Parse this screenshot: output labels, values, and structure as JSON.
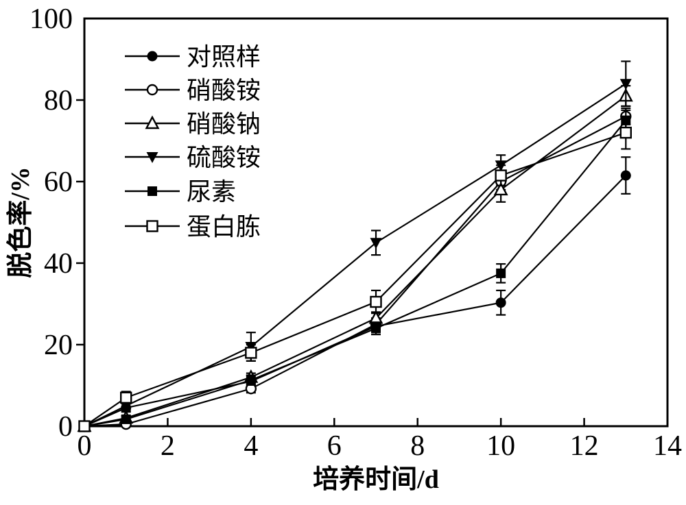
{
  "figure": {
    "background": "#ffffff",
    "ink_color": "#000000"
  },
  "chart_data": {
    "type": "line",
    "title": "",
    "xlabel": "培养时间/d",
    "ylabel": "脱色率/%",
    "xlim": [
      0,
      14
    ],
    "ylim": [
      0,
      100
    ],
    "x_ticks": [
      0,
      2,
      4,
      6,
      8,
      10,
      12,
      14
    ],
    "y_ticks": [
      0,
      20,
      40,
      60,
      80,
      100
    ],
    "grid": false,
    "legend_position": "upper-left-inside",
    "x": [
      0,
      1,
      4,
      7,
      10,
      13
    ],
    "series": [
      {
        "name": "对照样",
        "marker": "filled-circle",
        "values": [
          0,
          4.5,
          11,
          24.5,
          30.3,
          61.5
        ],
        "errors": [
          0,
          1,
          1.5,
          1.5,
          3,
          4.5
        ]
      },
      {
        "name": "硝酸铵",
        "marker": "open-circle",
        "values": [
          0,
          0.5,
          9.2,
          25,
          60,
          76
        ],
        "errors": [
          0,
          0.5,
          1,
          1.5,
          2,
          2
        ]
      },
      {
        "name": "硝酸钠",
        "marker": "open-triangle",
        "values": [
          0,
          2,
          12,
          26.5,
          58,
          81
        ],
        "errors": [
          0,
          0.5,
          1,
          1.5,
          3,
          2.5
        ]
      },
      {
        "name": "硫酸铵",
        "marker": "filled-triangle-down",
        "values": [
          0,
          5,
          19.5,
          45,
          64,
          84
        ],
        "errors": [
          0,
          1.2,
          3.5,
          3,
          2.5,
          5.5
        ]
      },
      {
        "name": "尿素",
        "marker": "filled-square",
        "values": [
          0,
          1.7,
          11.3,
          24,
          37.5,
          75
        ],
        "errors": [
          0,
          0.8,
          1.2,
          1.5,
          2.3,
          2.5
        ]
      },
      {
        "name": "蛋白胨",
        "marker": "open-square",
        "values": [
          0,
          7,
          18,
          30.5,
          61.5,
          72
        ],
        "errors": [
          0,
          1.5,
          2,
          2.8,
          2.5,
          4
        ]
      }
    ]
  }
}
